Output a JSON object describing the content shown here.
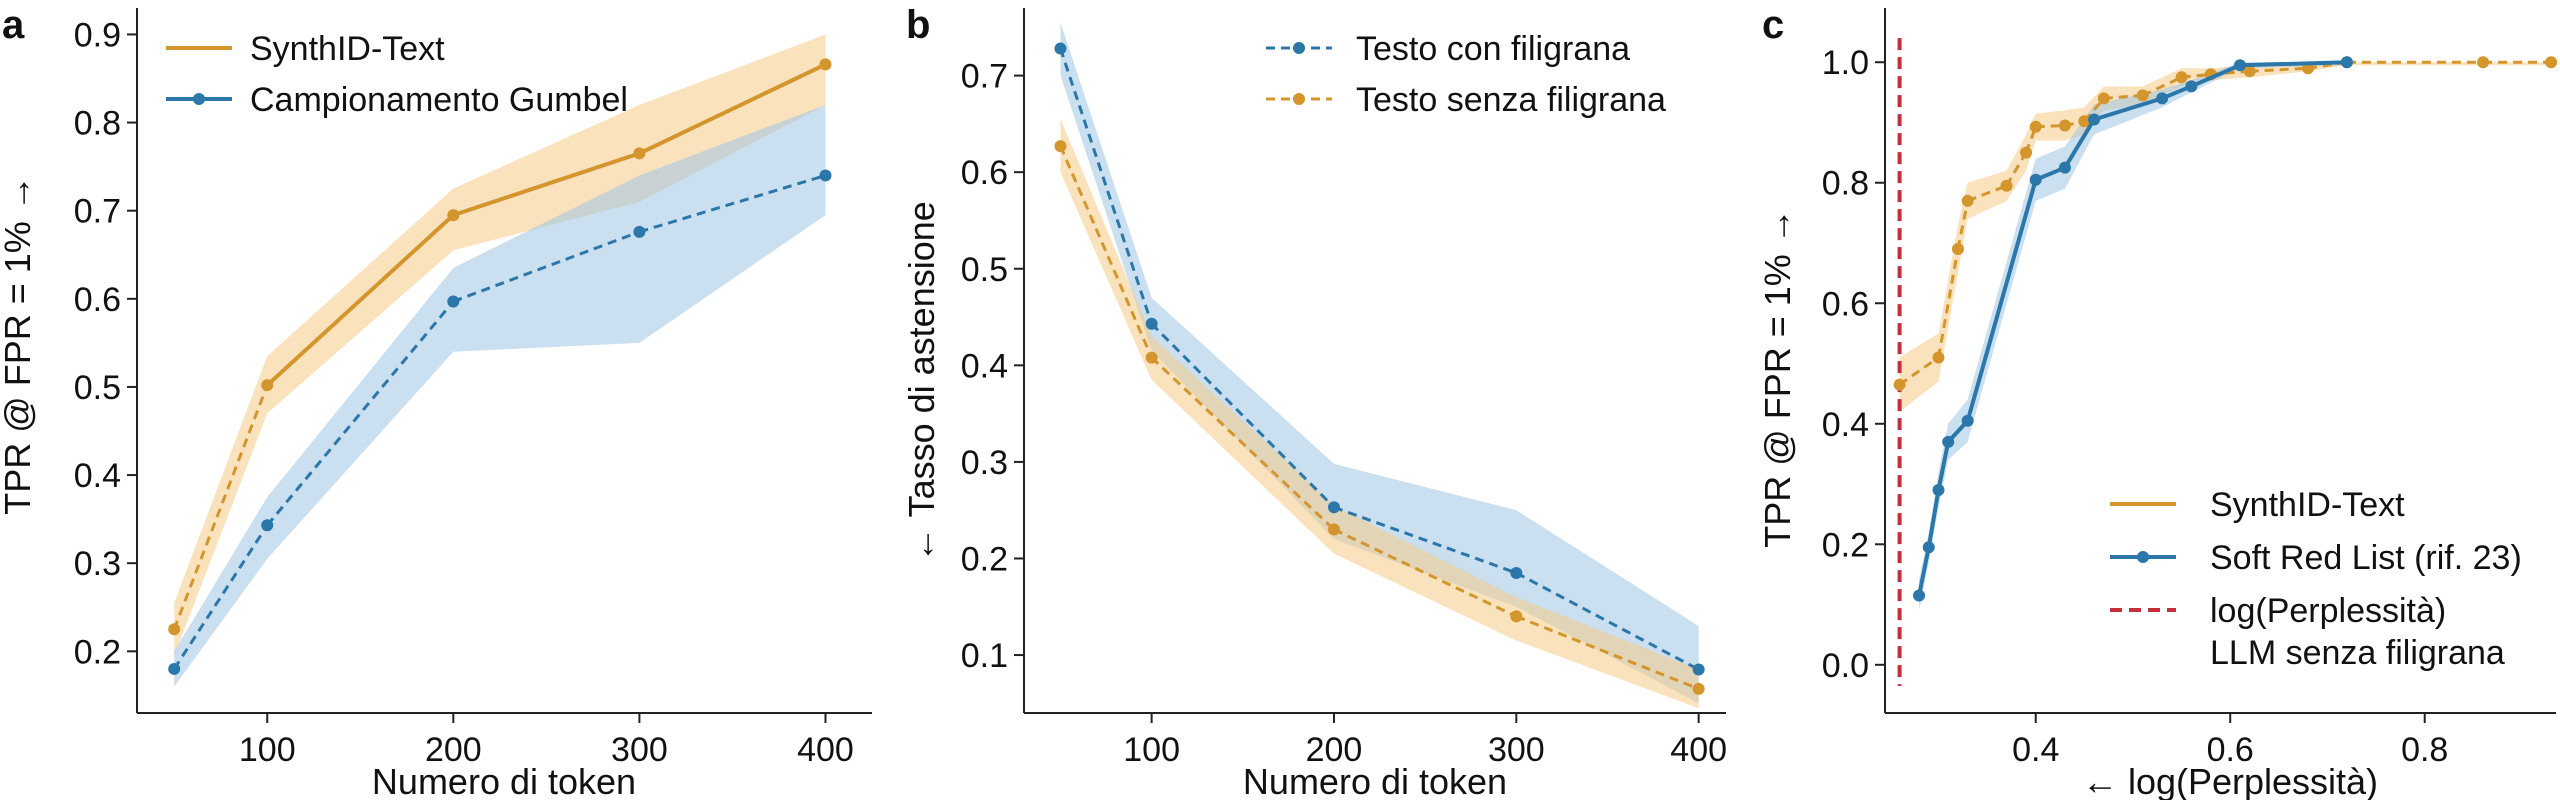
{
  "colors": {
    "orange": "#D4962C",
    "orange_band": "#F5CB86",
    "blue": "#2B77A9",
    "blue_band": "#9FC4E4",
    "red": "#C42F3A",
    "axis": "#222222"
  },
  "chart_data": [
    {
      "panel": "a",
      "type": "line",
      "xlabel": "Numero di token",
      "ylabel": "TPR @ FPR = 1% →",
      "xlim": [
        30,
        425
      ],
      "ylim": [
        0.13,
        0.93
      ],
      "xticks": [
        100,
        200,
        300,
        400
      ],
      "yticks": [
        0.2,
        0.3,
        0.4,
        0.5,
        0.6,
        0.7,
        0.8,
        0.9
      ],
      "legend": "top-left",
      "series": [
        {
          "name": "SynthID-Text",
          "color": "orange",
          "x": [
            50,
            100,
            200,
            300,
            400
          ],
          "y": [
            0.225,
            0.502,
            0.695,
            0.765,
            0.866
          ],
          "lower": [
            0.195,
            0.47,
            0.655,
            0.71,
            0.82
          ],
          "upper": [
            0.255,
            0.535,
            0.725,
            0.82,
            0.9
          ],
          "style_segments": [
            "dashed",
            "solid",
            "solid",
            "solid"
          ]
        },
        {
          "name": "Campionamento Gumbel",
          "color": "blue",
          "x": [
            50,
            100,
            200,
            300,
            400
          ],
          "y": [
            0.18,
            0.343,
            0.597,
            0.676,
            0.74
          ],
          "lower": [
            0.16,
            0.305,
            0.54,
            0.55,
            0.695
          ],
          "upper": [
            0.2,
            0.375,
            0.635,
            0.74,
            0.82
          ],
          "style_segments": [
            "dashed",
            "dashed",
            "dashed",
            "dashed"
          ]
        }
      ]
    },
    {
      "panel": "b",
      "type": "line",
      "xlabel": "Numero di token",
      "ylabel": "← Tasso di astensione",
      "xlim": [
        30,
        415
      ],
      "ylim": [
        0.04,
        0.77
      ],
      "xticks": [
        100,
        200,
        300,
        400
      ],
      "yticks": [
        0.1,
        0.2,
        0.3,
        0.4,
        0.5,
        0.6,
        0.7
      ],
      "legend": "top-right",
      "series": [
        {
          "name": "Testo con filigrana",
          "color": "blue",
          "x": [
            50,
            100,
            200,
            300,
            400
          ],
          "y": [
            0.728,
            0.443,
            0.253,
            0.185,
            0.085
          ],
          "lower": [
            0.7,
            0.415,
            0.22,
            0.15,
            0.05
          ],
          "upper": [
            0.755,
            0.47,
            0.298,
            0.25,
            0.13
          ],
          "style_segments": [
            "dashed",
            "dashed",
            "dashed",
            "dashed"
          ]
        },
        {
          "name": "Testo senza filigrana",
          "color": "orange",
          "x": [
            50,
            100,
            200,
            300,
            400
          ],
          "y": [
            0.627,
            0.408,
            0.23,
            0.14,
            0.065
          ],
          "lower": [
            0.6,
            0.385,
            0.205,
            0.115,
            0.045
          ],
          "upper": [
            0.655,
            0.43,
            0.255,
            0.16,
            0.085
          ],
          "style_segments": [
            "dashed",
            "dashed",
            "dashed",
            "dashed"
          ]
        }
      ]
    },
    {
      "panel": "c",
      "type": "line",
      "xlabel": "← log(Perplessità)",
      "ylabel": "TPR @ FPR = 1% →",
      "xlim": [
        0.245,
        0.935
      ],
      "ylim": [
        -0.08,
        1.09
      ],
      "xticks": [
        0.4,
        0.6,
        0.8
      ],
      "yticks": [
        0.0,
        0.2,
        0.4,
        0.6,
        0.8,
        1.0
      ],
      "legend": "bottom-right",
      "vline": {
        "x": 0.26,
        "label_line1": "log(Perplessità)",
        "label_line2": "LLM senza filigrana"
      },
      "series": [
        {
          "name": "SynthID-Text",
          "color": "orange",
          "x": [
            0.26,
            0.3,
            0.32,
            0.33,
            0.37,
            0.39,
            0.4,
            0.43,
            0.45,
            0.47,
            0.51,
            0.55,
            0.58,
            0.62,
            0.68,
            0.72,
            0.86,
            0.93
          ],
          "y": [
            0.465,
            0.51,
            0.69,
            0.77,
            0.795,
            0.85,
            0.893,
            0.895,
            0.902,
            0.94,
            0.945,
            0.975,
            0.98,
            0.985,
            0.99,
            1.0,
            1.0,
            1.0
          ],
          "lower": [
            0.42,
            0.47,
            0.65,
            0.74,
            0.77,
            0.82,
            0.87,
            0.87,
            0.88,
            0.92,
            0.93,
            0.96,
            0.97,
            0.975,
            0.985,
            0.995,
            0.995,
            0.995
          ],
          "upper": [
            0.51,
            0.55,
            0.73,
            0.8,
            0.82,
            0.88,
            0.915,
            0.92,
            0.925,
            0.96,
            0.96,
            0.99,
            0.99,
            0.995,
            1.0,
            1.0,
            1.0,
            1.0
          ],
          "style": "dashed"
        },
        {
          "name": "Soft Red List (rif. 23)",
          "color": "blue",
          "x": [
            0.28,
            0.29,
            0.3,
            0.31,
            0.33,
            0.4,
            0.43,
            0.46,
            0.53,
            0.56,
            0.61,
            0.72
          ],
          "y": [
            0.115,
            0.195,
            0.29,
            0.37,
            0.405,
            0.805,
            0.825,
            0.905,
            0.94,
            0.96,
            0.995,
            1.0
          ],
          "lower": [
            0.09,
            0.17,
            0.26,
            0.34,
            0.37,
            0.77,
            0.79,
            0.88,
            0.925,
            0.95,
            0.99,
            0.995
          ],
          "upper": [
            0.14,
            0.22,
            0.32,
            0.4,
            0.44,
            0.84,
            0.86,
            0.93,
            0.955,
            0.97,
            1.0,
            1.0
          ],
          "style": "solid"
        }
      ]
    }
  ]
}
